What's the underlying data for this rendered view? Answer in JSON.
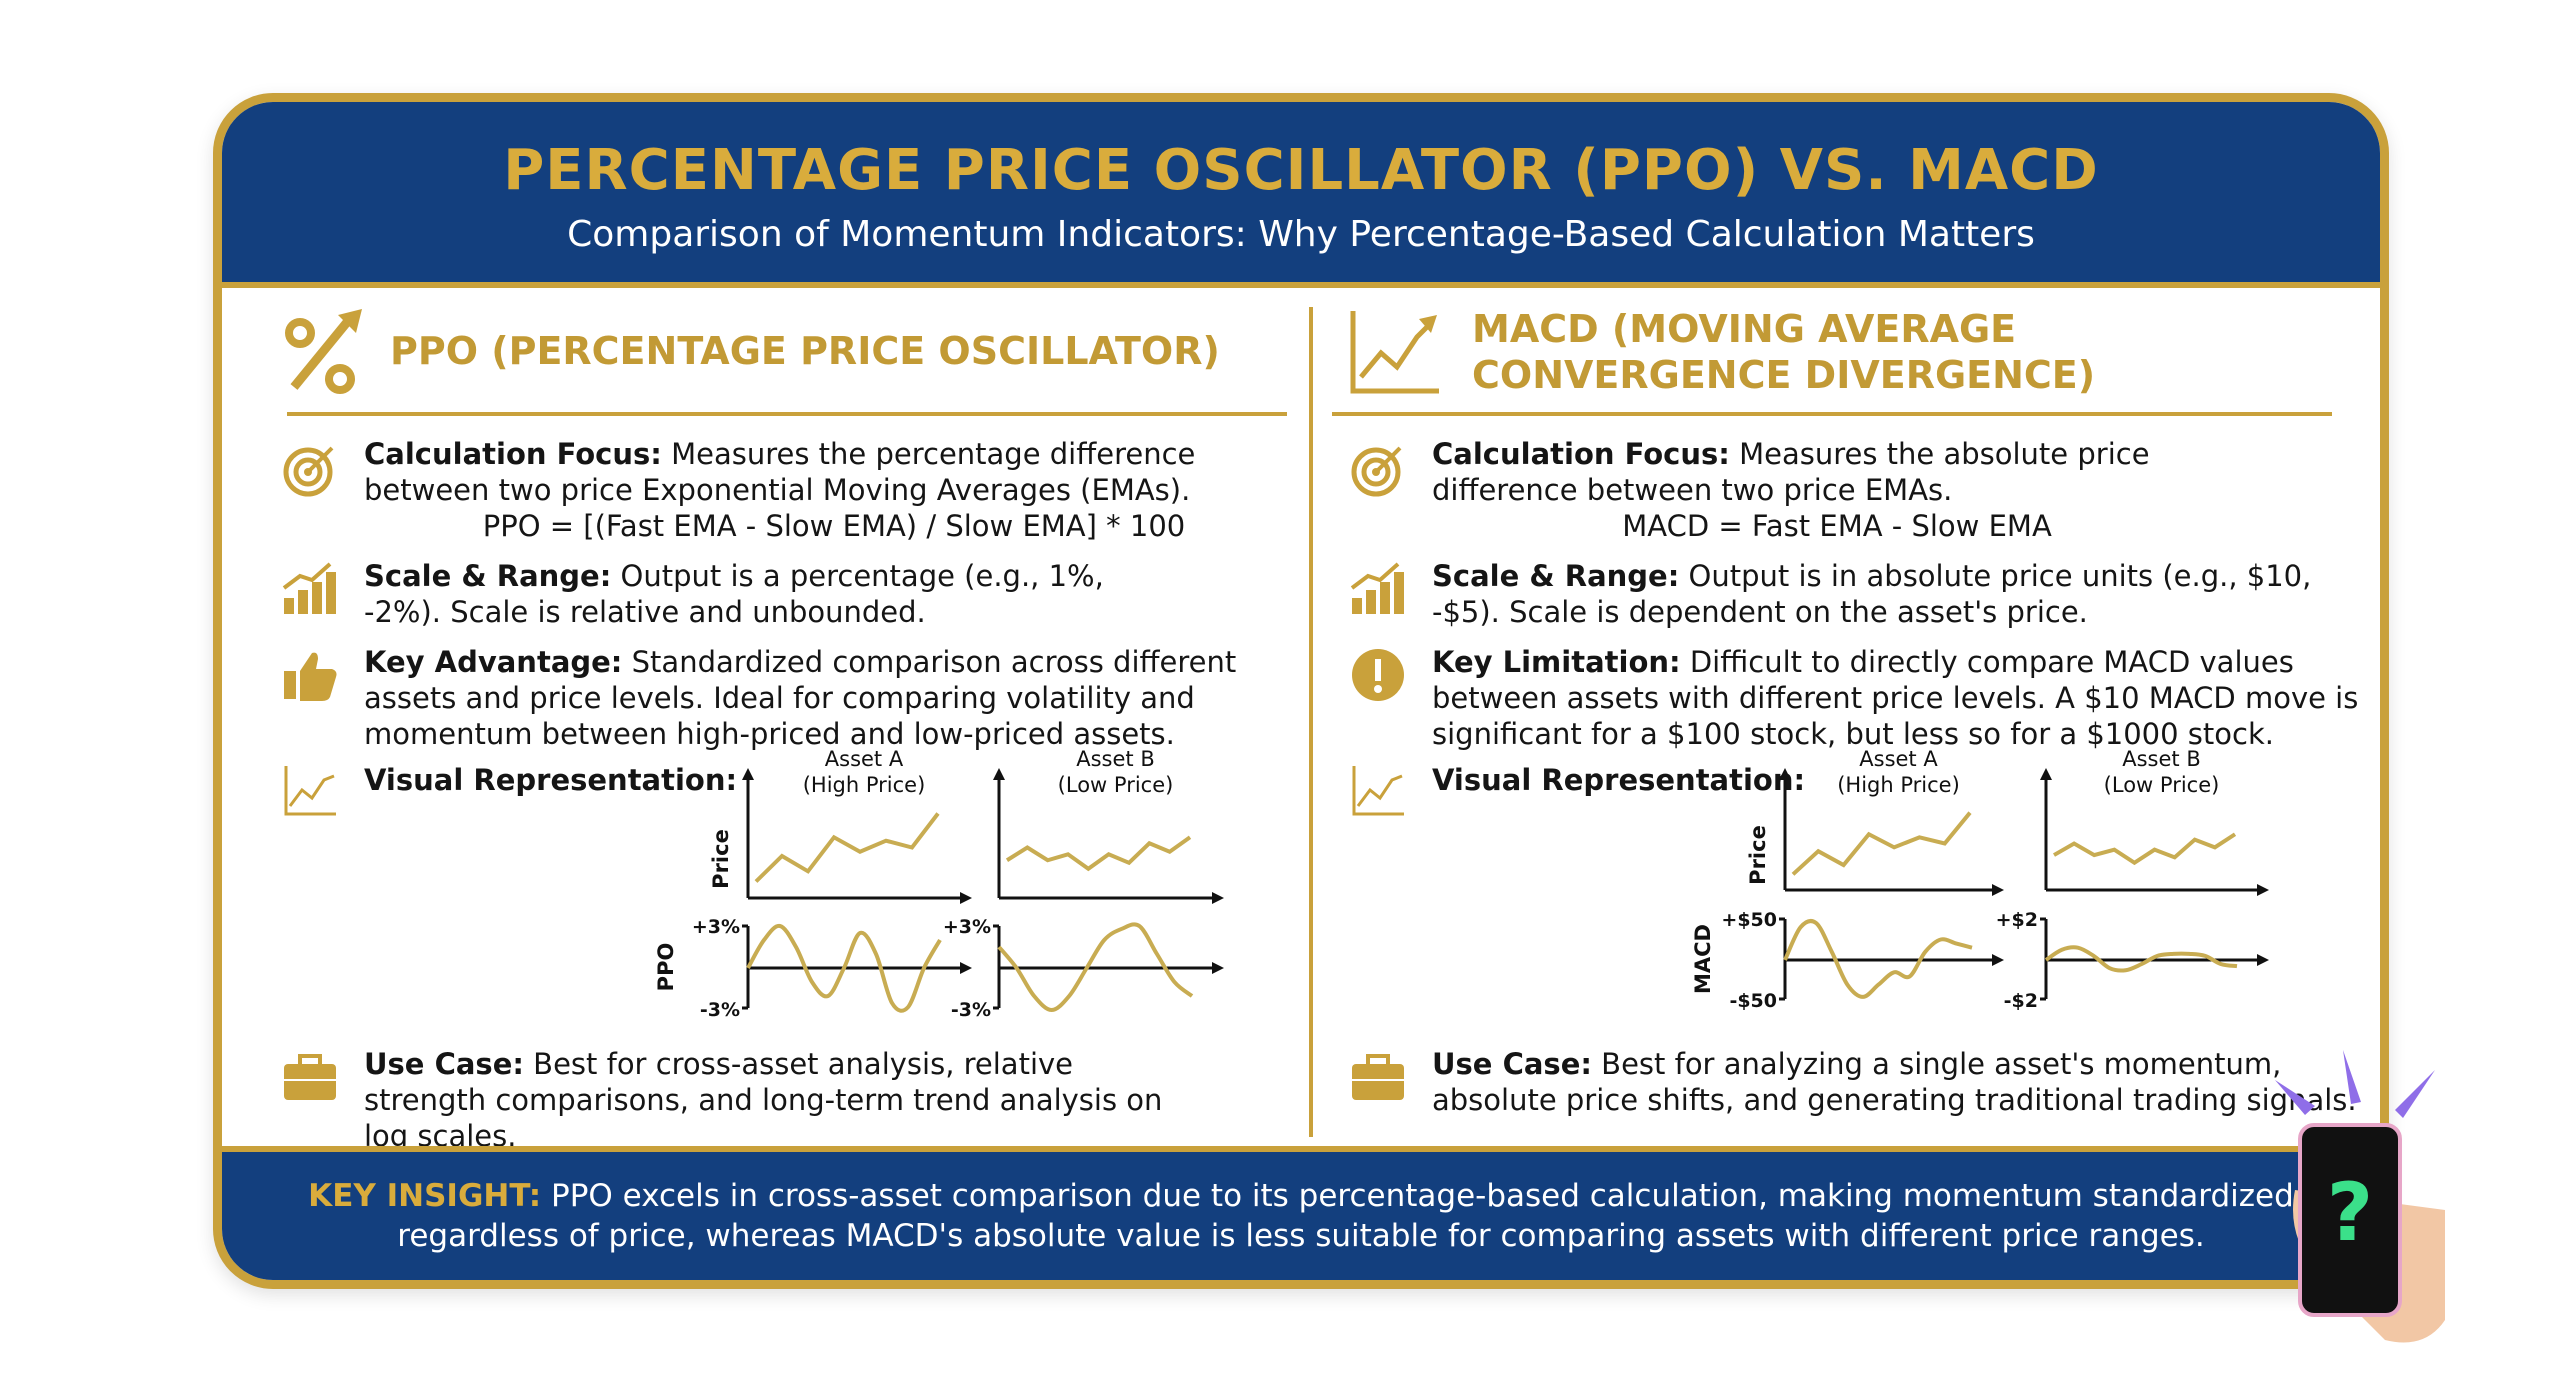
{
  "header": {
    "title": "PERCENTAGE PRICE OSCILLATOR (PPO) VS. MACD",
    "subtitle": "Comparison of Momentum Indicators: Why Percentage-Based Calculation Matters"
  },
  "colors": {
    "navy": "#133f7e",
    "gold": "#c9a13b",
    "line_gold": "#c8ac52",
    "text": "#151515"
  },
  "ppo": {
    "title": "PPO (PERCENTAGE PRICE OSCILLATOR)",
    "icon": "percent-arrow-icon",
    "calc_label": "Calculation Focus:",
    "calc_text": " Measures the percentage difference between two price Exponential Moving Averages (EMAs).",
    "formula": "PPO = [(Fast EMA - Slow EMA) / Slow EMA] * 100",
    "scale_label": "Scale & Range:",
    "scale_text": " Output is a percentage (e.g., 1%, -2%). Scale is relative and unbounded.",
    "adv_label": "Key Advantage:",
    "adv_text": " Standardized comparison across different assets and price levels. Ideal for comparing volatility and momentum between high-priced and low-priced assets.",
    "visual_label": "Visual Representation:",
    "use_label": "Use Case:",
    "use_text": " Best for cross-asset analysis, relative strength comparisons, and long-term trend analysis on log scales."
  },
  "macd": {
    "title_line1": "MACD (MOVING AVERAGE",
    "title_line2": "CONVERGENCE DIVERGENCE)",
    "icon": "line-chart-icon",
    "calc_label": "Calculation Focus:",
    "calc_text": " Measures the absolute price difference between two price EMAs.",
    "formula": "MACD = Fast EMA - Slow EMA",
    "scale_label": "Scale & Range:",
    "scale_text": " Output is in absolute price units (e.g., $10, -$5). Scale is dependent on the asset's price.",
    "lim_label": "Key Limitation:",
    "lim_text": " Difficult to directly compare MACD values between assets with different price levels. A $10 MACD move is significant for a $100 stock, but less so for a $1000 stock.",
    "visual_label": "Visual Representation:",
    "use_label": "Use Case:",
    "use_text": " Best for analyzing a single asset's momentum, absolute price shifts, and generating traditional trading signals."
  },
  "footer": {
    "label": "KEY INSIGHT:",
    "text": " PPO excels in cross-asset comparison due to its percentage-based calculation, making momentum standardized regardless of price, whereas MACD's absolute value is less suitable for comparing assets with different price ranges."
  },
  "chart_data": [
    {
      "type": "line",
      "title": "Asset A\n(High Price)",
      "title1": "Asset A",
      "title2": "(High Price)",
      "ylabel": "Price",
      "values": [
        10,
        40,
        22,
        62,
        45,
        58,
        50,
        90
      ]
    },
    {
      "type": "line",
      "title": "Asset B\n(Low Price)",
      "title1": "Asset B",
      "title2": "(Low Price)",
      "ylabel": "",
      "values": [
        35,
        50,
        35,
        42,
        25,
        42,
        32,
        55,
        45,
        62
      ]
    },
    {
      "type": "line",
      "ylabel": "PPO",
      "ytick_top": "+3%",
      "ytick_bottom": "-3%",
      "ylim": [
        -3,
        3
      ],
      "values": [
        0,
        2,
        3,
        1.5,
        -1,
        -2,
        0,
        2.5,
        1,
        -2.5,
        -2.8,
        0,
        2
      ]
    },
    {
      "type": "line",
      "ylabel": "",
      "ytick_top": "+3%",
      "ytick_bottom": "-3%",
      "ylim": [
        -3,
        3
      ],
      "values": [
        1.5,
        0,
        -2,
        -3,
        -2,
        0,
        2,
        2.8,
        3,
        1,
        -1,
        -2
      ]
    },
    {
      "type": "line",
      "title1": "Asset A",
      "title2": "(High Price)",
      "ylabel": "Price",
      "values": [
        10,
        40,
        22,
        62,
        45,
        58,
        50,
        90
      ]
    },
    {
      "type": "line",
      "title1": "Asset B",
      "title2": "(Low Price)",
      "ylabel": "",
      "values": [
        35,
        50,
        35,
        42,
        25,
        42,
        32,
        55,
        45,
        62
      ]
    },
    {
      "type": "line",
      "ylabel": "MACD",
      "ytick_top": "+$50",
      "ytick_bottom": "-$50",
      "ylim": [
        -50,
        50
      ],
      "values": [
        0,
        40,
        45,
        10,
        -30,
        -45,
        -30,
        -15,
        -20,
        10,
        25,
        20,
        15
      ]
    },
    {
      "type": "line",
      "ylabel": "",
      "ytick_top": "+$2",
      "ytick_bottom": "-$2",
      "ylim": [
        -2,
        2
      ],
      "values": [
        0,
        0.5,
        0.6,
        0.2,
        -0.4,
        -0.5,
        -0.2,
        0.2,
        0.3,
        0.3,
        0.2,
        -0.2,
        -0.3
      ]
    }
  ]
}
